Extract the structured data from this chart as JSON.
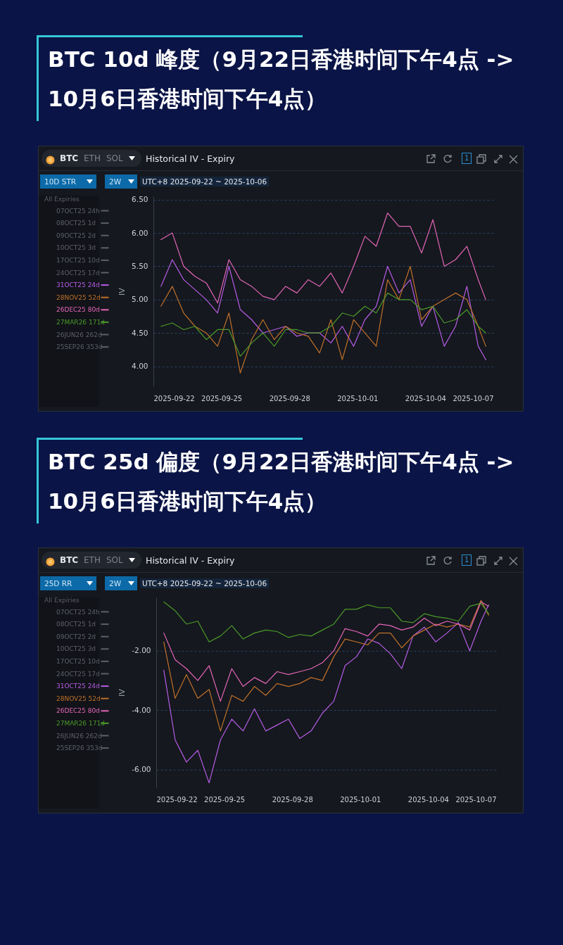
{
  "chart_data": [
    {
      "type": "line",
      "title": "BTC 10d 峰度（9月22日香港时间下午4点 -> 10月6日香港时间下午4点）",
      "ylabel": "IV",
      "legend_title": "All Expiries",
      "legend": "left",
      "grid": "y",
      "marker": "none",
      "line_style": "solid",
      "annotations": [
        "BTC",
        "ETH",
        "SOL",
        "Historical IV - Expiry",
        "1",
        "10D STR",
        "2W",
        "UTC+8 2025-09-22 ~ 2025-10-06"
      ],
      "x": [
        "2025-09-22T08:00",
        "2025-09-22T20:00",
        "2025-09-23T08:00",
        "2025-09-23T20:00",
        "2025-09-24T08:00",
        "2025-09-24T20:00",
        "2025-09-25T08:00",
        "2025-09-25T20:00",
        "2025-09-26T08:00",
        "2025-09-26T20:00",
        "2025-09-27T08:00",
        "2025-09-27T20:00",
        "2025-09-28T08:00",
        "2025-09-28T20:00",
        "2025-09-29T08:00",
        "2025-09-29T20:00",
        "2025-09-30T08:00",
        "2025-09-30T20:00",
        "2025-10-01T08:00",
        "2025-10-01T20:00",
        "2025-10-02T08:00",
        "2025-10-02T20:00",
        "2025-10-03T08:00",
        "2025-10-03T20:00",
        "2025-10-04T08:00",
        "2025-10-04T20:00",
        "2025-10-05T08:00",
        "2025-10-05T20:00",
        "2025-10-06T08:00",
        "2025-10-06T16:00"
      ],
      "xlim": [
        "2025-09-22",
        "2025-10-07"
      ],
      "xticks": [
        "2025-09-22",
        "2025-09-25",
        "2025-09-28",
        "2025-10-01",
        "2025-10-04",
        "2025-10-07"
      ],
      "ylim": [
        3.7,
        6.55
      ],
      "yticks": [
        {
          "value": 4,
          "label": "4.00"
        },
        {
          "value": 4.5,
          "label": "4.50"
        },
        {
          "value": 5,
          "label": "5.00"
        },
        {
          "value": 5.5,
          "label": "5.50"
        },
        {
          "value": 6,
          "label": "6.00"
        },
        {
          "value": 6.5,
          "label": "6.50"
        }
      ],
      "series": [
        {
          "name": "07OCT25 24h",
          "color": "#5c6068",
          "values": [
            null,
            null,
            null,
            null,
            null,
            null,
            null,
            null,
            null,
            null,
            null,
            null,
            null,
            null,
            null,
            null,
            null,
            null,
            null,
            null,
            null,
            null,
            null,
            null,
            null,
            null,
            null,
            null,
            null,
            null
          ]
        },
        {
          "name": "08OCT25 1d",
          "color": "#5c6068",
          "values": [
            null,
            null,
            null,
            null,
            null,
            null,
            null,
            null,
            null,
            null,
            null,
            null,
            null,
            null,
            null,
            null,
            null,
            null,
            null,
            null,
            null,
            null,
            null,
            null,
            null,
            null,
            null,
            null,
            null,
            null
          ]
        },
        {
          "name": "09OCT25 2d",
          "color": "#5c6068",
          "values": [
            null,
            null,
            null,
            null,
            null,
            null,
            null,
            null,
            null,
            null,
            null,
            null,
            null,
            null,
            null,
            null,
            null,
            null,
            null,
            null,
            null,
            null,
            null,
            null,
            null,
            null,
            null,
            null,
            null,
            null
          ]
        },
        {
          "name": "10OCT25 3d",
          "color": "#5c6068",
          "values": [
            null,
            null,
            null,
            null,
            null,
            null,
            null,
            null,
            null,
            null,
            null,
            null,
            null,
            null,
            null,
            null,
            null,
            null,
            null,
            null,
            null,
            null,
            null,
            null,
            null,
            null,
            null,
            null,
            null,
            null
          ]
        },
        {
          "name": "17OCT25 10d",
          "color": "#5c6068",
          "values": [
            null,
            null,
            null,
            null,
            null,
            null,
            null,
            null,
            null,
            null,
            null,
            null,
            null,
            null,
            null,
            null,
            null,
            null,
            null,
            null,
            null,
            null,
            null,
            null,
            null,
            null,
            null,
            null,
            null,
            null
          ]
        },
        {
          "name": "24OCT25 17d",
          "color": "#5c6068",
          "values": [
            null,
            null,
            null,
            null,
            null,
            null,
            null,
            null,
            null,
            null,
            null,
            null,
            null,
            null,
            null,
            null,
            null,
            null,
            null,
            null,
            null,
            null,
            null,
            null,
            null,
            null,
            null,
            null,
            null,
            null
          ]
        },
        {
          "name": "31OCT25 24d",
          "color": "#b65ce6",
          "values": [
            5.2,
            5.6,
            5.3,
            5.15,
            5.0,
            4.8,
            5.5,
            4.85,
            4.7,
            4.5,
            4.55,
            4.6,
            4.45,
            4.5,
            4.5,
            4.35,
            4.6,
            4.3,
            4.7,
            4.9,
            5.5,
            5.1,
            5.3,
            4.6,
            4.9,
            4.3,
            4.6,
            5.2,
            4.3,
            4.1
          ]
        },
        {
          "name": "28NOV25 52d",
          "color": "#c0702a",
          "values": [
            4.9,
            5.2,
            4.8,
            4.6,
            4.5,
            4.3,
            4.8,
            3.9,
            4.4,
            4.7,
            4.4,
            4.6,
            4.5,
            4.45,
            4.2,
            4.7,
            4.1,
            4.7,
            4.5,
            4.3,
            5.3,
            5.0,
            5.5,
            4.7,
            4.9,
            5.0,
            5.1,
            5.0,
            4.6,
            4.3
          ]
        },
        {
          "name": "26DEC25 80d",
          "color": "#e465b8",
          "values": [
            5.9,
            6.0,
            5.5,
            5.35,
            5.25,
            4.95,
            5.6,
            5.3,
            5.2,
            5.05,
            5.0,
            5.2,
            5.1,
            5.3,
            5.2,
            5.4,
            5.1,
            5.5,
            5.95,
            5.8,
            6.3,
            6.1,
            6.1,
            5.7,
            6.2,
            5.5,
            5.6,
            5.8,
            5.3,
            5.0
          ]
        },
        {
          "name": "27MAR26 171d",
          "color": "#4c9a2a",
          "values": [
            4.6,
            4.65,
            4.55,
            4.6,
            4.4,
            4.55,
            4.55,
            4.15,
            4.35,
            4.5,
            4.3,
            4.55,
            4.55,
            4.5,
            4.5,
            4.6,
            4.8,
            4.75,
            4.9,
            4.8,
            5.1,
            5.0,
            5.0,
            4.85,
            4.9,
            4.65,
            4.7,
            4.85,
            4.6,
            4.5
          ]
        },
        {
          "name": "26JUN26 262d",
          "color": "#5c6068",
          "values": [
            null,
            null,
            null,
            null,
            null,
            null,
            null,
            null,
            null,
            null,
            null,
            null,
            null,
            null,
            null,
            null,
            null,
            null,
            null,
            null,
            null,
            null,
            null,
            null,
            null,
            null,
            null,
            null,
            null,
            null
          ]
        },
        {
          "name": "25SEP26 353d",
          "color": "#5c6068",
          "values": [
            null,
            null,
            null,
            null,
            null,
            null,
            null,
            null,
            null,
            null,
            null,
            null,
            null,
            null,
            null,
            null,
            null,
            null,
            null,
            null,
            null,
            null,
            null,
            null,
            null,
            null,
            null,
            null,
            null,
            null
          ]
        }
      ]
    },
    {
      "type": "line",
      "title": "BTC 25d 偏度（9月22日香港时间下午4点 -> 10月6日香港时间下午4点）",
      "ylabel": "IV",
      "legend_title": "All Expiries",
      "legend": "left",
      "grid": "y",
      "marker": "none",
      "line_style": "solid",
      "annotations": [
        "BTC",
        "ETH",
        "SOL",
        "Historical IV - Expiry",
        "1",
        "25D RR",
        "2W",
        "UTC+8 2025-09-22 ~ 2025-10-06"
      ],
      "x": [
        "2025-09-22T08:00",
        "2025-09-22T20:00",
        "2025-09-23T08:00",
        "2025-09-23T20:00",
        "2025-09-24T08:00",
        "2025-09-24T20:00",
        "2025-09-25T08:00",
        "2025-09-25T20:00",
        "2025-09-26T08:00",
        "2025-09-26T20:00",
        "2025-09-27T08:00",
        "2025-09-27T20:00",
        "2025-09-28T08:00",
        "2025-09-28T20:00",
        "2025-09-29T08:00",
        "2025-09-29T20:00",
        "2025-09-30T08:00",
        "2025-09-30T20:00",
        "2025-10-01T08:00",
        "2025-10-01T20:00",
        "2025-10-02T08:00",
        "2025-10-02T20:00",
        "2025-10-03T08:00",
        "2025-10-03T20:00",
        "2025-10-04T08:00",
        "2025-10-04T20:00",
        "2025-10-05T08:00",
        "2025-10-05T20:00",
        "2025-10-06T08:00",
        "2025-10-06T16:00"
      ],
      "xlim": [
        "2025-09-22",
        "2025-10-07"
      ],
      "xticks": [
        "2025-09-22",
        "2025-09-25",
        "2025-09-28",
        "2025-10-01",
        "2025-10-04",
        "2025-10-07"
      ],
      "ylim": [
        -6.6,
        -0.2
      ],
      "yticks": [
        {
          "value": -6,
          "label": "-6.00"
        },
        {
          "value": -4,
          "label": "-4.00"
        },
        {
          "value": -2,
          "label": "-2.00"
        }
      ],
      "series": [
        {
          "name": "07OCT25 24h",
          "color": "#5c6068",
          "values": [
            null,
            null,
            null,
            null,
            null,
            null,
            null,
            null,
            null,
            null,
            null,
            null,
            null,
            null,
            null,
            null,
            null,
            null,
            null,
            null,
            null,
            null,
            null,
            null,
            null,
            null,
            null,
            null,
            null,
            null
          ]
        },
        {
          "name": "08OCT25 1d",
          "color": "#5c6068",
          "values": [
            null,
            null,
            null,
            null,
            null,
            null,
            null,
            null,
            null,
            null,
            null,
            null,
            null,
            null,
            null,
            null,
            null,
            null,
            null,
            null,
            null,
            null,
            null,
            null,
            null,
            null,
            null,
            null,
            null,
            null
          ]
        },
        {
          "name": "09OCT25 2d",
          "color": "#5c6068",
          "values": [
            null,
            null,
            null,
            null,
            null,
            null,
            null,
            null,
            null,
            null,
            null,
            null,
            null,
            null,
            null,
            null,
            null,
            null,
            null,
            null,
            null,
            null,
            null,
            null,
            null,
            null,
            null,
            null,
            null,
            null
          ]
        },
        {
          "name": "10OCT25 3d",
          "color": "#5c6068",
          "values": [
            null,
            null,
            null,
            null,
            null,
            null,
            null,
            null,
            null,
            null,
            null,
            null,
            null,
            null,
            null,
            null,
            null,
            null,
            null,
            null,
            null,
            null,
            null,
            null,
            null,
            null,
            null,
            null,
            null,
            null
          ]
        },
        {
          "name": "17OCT25 10d",
          "color": "#5c6068",
          "values": [
            null,
            null,
            null,
            null,
            null,
            null,
            null,
            null,
            null,
            null,
            null,
            null,
            null,
            null,
            null,
            null,
            null,
            null,
            null,
            null,
            null,
            null,
            null,
            null,
            null,
            null,
            null,
            null,
            null,
            null
          ]
        },
        {
          "name": "24OCT25 17d",
          "color": "#5c6068",
          "values": [
            null,
            null,
            null,
            null,
            null,
            null,
            null,
            null,
            null,
            null,
            null,
            null,
            null,
            null,
            null,
            null,
            null,
            null,
            null,
            null,
            null,
            null,
            null,
            null,
            null,
            null,
            null,
            null,
            null,
            null
          ]
        },
        {
          "name": "31OCT25 24d",
          "color": "#b65ce6",
          "values": [
            -2.65,
            -5.0,
            -5.75,
            -5.35,
            -6.45,
            -5.0,
            -4.3,
            -4.7,
            -3.95,
            -4.7,
            -4.5,
            -4.3,
            -4.95,
            -4.7,
            -4.1,
            -3.7,
            -2.5,
            -2.2,
            -1.6,
            -1.75,
            -2.1,
            -2.6,
            -1.5,
            -1.2,
            -1.7,
            -1.4,
            -1.05,
            -2.0,
            -1.0,
            -0.45
          ]
        },
        {
          "name": "28NOV25 52d",
          "color": "#c0702a",
          "values": [
            -1.7,
            -3.6,
            -2.8,
            -3.6,
            -3.3,
            -4.7,
            -3.5,
            -3.7,
            -3.2,
            -3.5,
            -3.1,
            -3.2,
            -3.1,
            -2.9,
            -3.0,
            -2.2,
            -1.6,
            -1.7,
            -1.8,
            -1.4,
            -1.4,
            -1.9,
            -1.5,
            -1.3,
            -1.1,
            -1.2,
            -1.1,
            -1.2,
            -0.3,
            -0.8
          ]
        },
        {
          "name": "26DEC25 80d",
          "color": "#e465b8",
          "values": [
            -1.4,
            -2.3,
            -2.6,
            -3.0,
            -2.5,
            -3.7,
            -2.6,
            -3.2,
            -2.9,
            -3.1,
            -2.7,
            -2.8,
            -2.7,
            -2.6,
            -2.4,
            -2.0,
            -1.25,
            -1.35,
            -1.5,
            -1.1,
            -1.15,
            -1.3,
            -1.2,
            -0.9,
            -1.15,
            -1.0,
            -1.1,
            -1.3,
            -0.35,
            -0.5
          ]
        },
        {
          "name": "27MAR26 171d",
          "color": "#4c9a2a",
          "values": [
            -0.35,
            -0.65,
            -1.1,
            -1.0,
            -1.7,
            -1.5,
            -1.15,
            -1.6,
            -1.4,
            -1.3,
            -1.35,
            -1.55,
            -1.45,
            -1.5,
            -1.3,
            -1.1,
            -0.6,
            -0.6,
            -0.45,
            -0.55,
            -0.55,
            -1.0,
            -1.05,
            -0.75,
            -0.85,
            -0.9,
            -1.0,
            -0.5,
            -0.4,
            -0.75
          ]
        },
        {
          "name": "26JUN26 262d",
          "color": "#5c6068",
          "values": [
            null,
            null,
            null,
            null,
            null,
            null,
            null,
            null,
            null,
            null,
            null,
            null,
            null,
            null,
            null,
            null,
            null,
            null,
            null,
            null,
            null,
            null,
            null,
            null,
            null,
            null,
            null,
            null,
            null,
            null
          ]
        },
        {
          "name": "25SEP26 353d",
          "color": "#5c6068",
          "values": [
            null,
            null,
            null,
            null,
            null,
            null,
            null,
            null,
            null,
            null,
            null,
            null,
            null,
            null,
            null,
            null,
            null,
            null,
            null,
            null,
            null,
            null,
            null,
            null,
            null,
            null,
            null,
            null,
            null,
            null
          ]
        }
      ]
    }
  ]
}
